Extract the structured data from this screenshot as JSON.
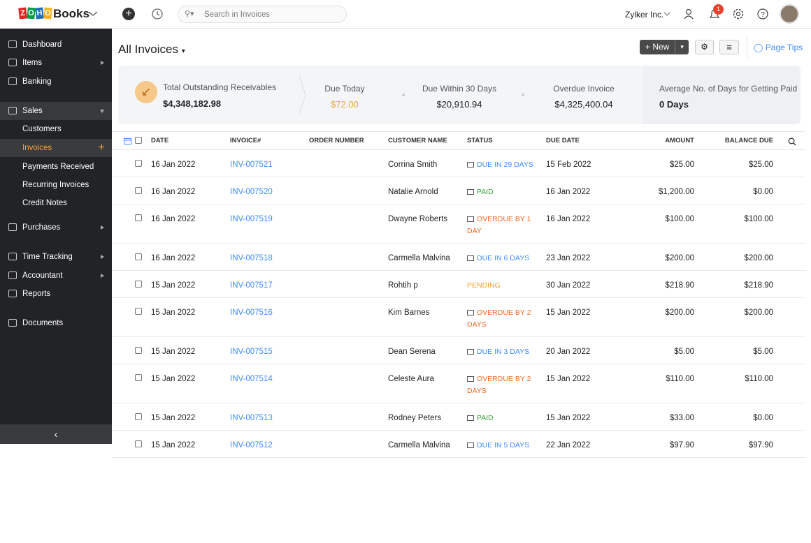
{
  "header": {
    "logo_brand": "ZOHO",
    "logo_product": "Books",
    "search_placeholder": "Search in Invoices",
    "organization": "Zylker Inc.",
    "notification_count": "1"
  },
  "sidebar": {
    "items": [
      {
        "label": "Dashboard"
      },
      {
        "label": "Items",
        "arrow": true
      },
      {
        "label": "Banking"
      },
      {
        "label": "Sales",
        "arrow": true,
        "expanded": true
      },
      {
        "label": "Customers",
        "sub": true
      },
      {
        "label": "Invoices",
        "sub": true,
        "active": true
      },
      {
        "label": "Payments Received",
        "sub": true
      },
      {
        "label": "Recurring Invoices",
        "sub": true
      },
      {
        "label": "Credit Notes",
        "sub": true
      },
      {
        "label": "Purchases",
        "arrow": true
      },
      {
        "label": "Time Tracking",
        "arrow": true
      },
      {
        "label": "Accountant",
        "arrow": true
      },
      {
        "label": "Reports"
      },
      {
        "label": "Documents"
      }
    ]
  },
  "page": {
    "title": "All Invoices",
    "new_button": "New",
    "page_tips": "Page Tips"
  },
  "summary": {
    "total": {
      "label": "Total Outstanding Receivables",
      "value": "$4,348,182.98"
    },
    "cards": [
      {
        "label": "Due Today",
        "value": "$72.00",
        "color": "#e8a33d"
      },
      {
        "label": "Due Within 30 Days",
        "value": "$20,910.94"
      },
      {
        "label": "Overdue Invoice",
        "value": "$4,325,400.04"
      }
    ],
    "average": {
      "label": "Average No. of Days for Getting Paid",
      "value": "0 Days"
    }
  },
  "table": {
    "columns": [
      "DATE",
      "INVOICE#",
      "ORDER NUMBER",
      "CUSTOMER NAME",
      "STATUS",
      "DUE DATE",
      "AMOUNT",
      "BALANCE DUE"
    ],
    "rows": [
      {
        "date": "16 Jan 2022",
        "invoice": "INV-007521",
        "customer": "Corrina Smith",
        "status": "DUE IN 29 DAYS",
        "status_color": "#408dfb",
        "emailed": true,
        "due_date": "15 Feb 2022",
        "amount": "$25.00",
        "balance": "$25.00"
      },
      {
        "date": "16 Jan 2022",
        "invoice": "INV-007520",
        "customer": "Natalie Arnold",
        "status": "PAID",
        "status_color": "#3fa33f",
        "emailed": true,
        "due_date": "16 Jan 2022",
        "amount": "$1,200.00",
        "balance": "$0.00"
      },
      {
        "date": "16 Jan 2022",
        "invoice": "INV-007519",
        "customer": "Dwayne Roberts",
        "status": "OVERDUE BY 1 DAY",
        "status_color": "#f26a21",
        "emailed": true,
        "due_date": "16 Jan 2022",
        "amount": "$100.00",
        "balance": "$100.00"
      },
      {
        "date": "16 Jan 2022",
        "invoice": "INV-007518",
        "customer": "Carmella Malvina",
        "status": "DUE IN 6 DAYS",
        "status_color": "#408dfb",
        "emailed": true,
        "due_date": "23 Jan 2022",
        "amount": "$200.00",
        "balance": "$200.00"
      },
      {
        "date": "15 Jan 2022",
        "invoice": "INV-007517",
        "customer": "Rohtih p",
        "status": "PENDING",
        "status_color": "#f0a020",
        "emailed": false,
        "due_date": "30 Jan 2022",
        "amount": "$218.90",
        "balance": "$218.90"
      },
      {
        "date": "15 Jan 2022",
        "invoice": "INV-007516",
        "customer": "Kim Barnes",
        "status": "OVERDUE BY 2 DAYS",
        "status_color": "#f26a21",
        "emailed": true,
        "due_date": "15 Jan 2022",
        "amount": "$200.00",
        "balance": "$200.00"
      },
      {
        "date": "15 Jan 2022",
        "invoice": "INV-007515",
        "customer": "Dean Serena",
        "status": "DUE IN 3 DAYS",
        "status_color": "#408dfb",
        "emailed": true,
        "due_date": "20 Jan 2022",
        "amount": "$5.00",
        "balance": "$5.00"
      },
      {
        "date": "15 Jan 2022",
        "invoice": "INV-007514",
        "customer": "Celeste Aura",
        "status": "OVERDUE BY 2 DAYS",
        "status_color": "#f26a21",
        "emailed": true,
        "due_date": "15 Jan 2022",
        "amount": "$110.00",
        "balance": "$110.00"
      },
      {
        "date": "15 Jan 2022",
        "invoice": "INV-007513",
        "customer": "Rodney Peters",
        "status": "PAID",
        "status_color": "#3fa33f",
        "emailed": true,
        "due_date": "15 Jan 2022",
        "amount": "$33.00",
        "balance": "$0.00"
      },
      {
        "date": "15 Jan 2022",
        "invoice": "INV-007512",
        "customer": "Carmella Malvina",
        "status": "DUE IN 5 DAYS",
        "status_color": "#408dfb",
        "emailed": true,
        "due_date": "22 Jan 2022",
        "amount": "$97.90",
        "balance": "$97.90"
      }
    ]
  }
}
